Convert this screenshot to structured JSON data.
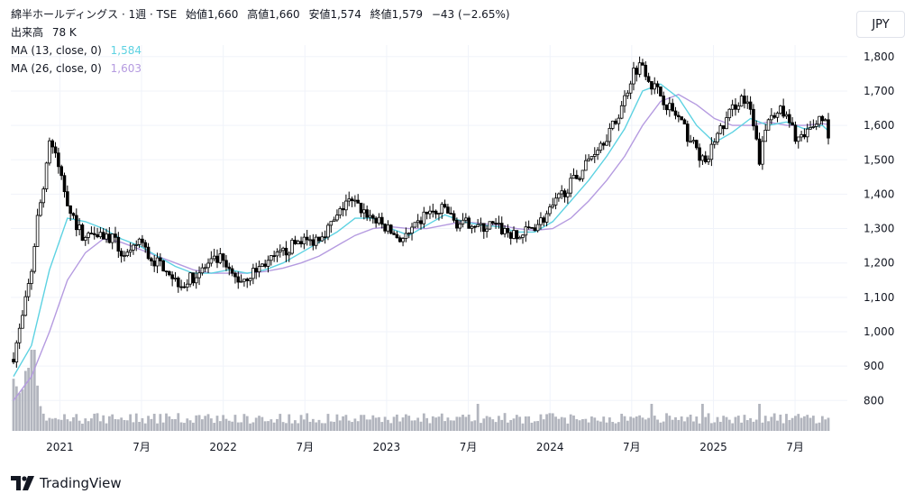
{
  "header": {
    "title": "綿半ホールディングス · 1週 · TSE",
    "open_label": "始値",
    "open": "1,660",
    "high_label": "高値",
    "high": "1,660",
    "low_label": "安値",
    "low": "1,574",
    "close_label": "終値",
    "close": "1,579",
    "change": "−43 (−2.65%)",
    "volume_label": "出来高",
    "volume": "78 K",
    "ma13_label": "MA (13, close, 0)",
    "ma13_value": "1,584",
    "ma26_label": "MA (26, close, 0)",
    "ma26_value": "1,603"
  },
  "currency_button": "JPY",
  "brand": "TradingView",
  "colors": {
    "up": "#ffffff",
    "down": "#000000",
    "ma13": "#5dd2e2",
    "ma26": "#b59be0",
    "volume": "#b2b5be",
    "grid": "#f0f3fa"
  },
  "chart_data": {
    "type": "candlestick",
    "interval": "1 week",
    "y_axis": {
      "ticks": [
        800,
        900,
        1000,
        1100,
        1200,
        1300,
        1400,
        1500,
        1600,
        1700,
        1800
      ],
      "tick_labels": [
        "800",
        "900",
        "1,000",
        "1,100",
        "1,200",
        "1,300",
        "1,400",
        "1,500",
        "1,600",
        "1,700",
        "1,800"
      ]
    },
    "x_axis": {
      "ticks": [
        {
          "label": "2021",
          "date": "2021-01"
        },
        {
          "label": "7月",
          "date": "2021-07"
        },
        {
          "label": "2022",
          "date": "2022-01"
        },
        {
          "label": "7月",
          "date": "2022-07"
        },
        {
          "label": "2023",
          "date": "2023-01"
        },
        {
          "label": "7月",
          "date": "2023-07"
        },
        {
          "label": "2024",
          "date": "2024-01"
        },
        {
          "label": "7月",
          "date": "2024-07"
        },
        {
          "label": "2025",
          "date": "2025-01"
        },
        {
          "label": "7月",
          "date": "2025-07"
        }
      ]
    },
    "close_path": [
      [
        0,
        930
      ],
      [
        3,
        1040
      ],
      [
        6,
        1180
      ],
      [
        8,
        1330
      ],
      [
        10,
        1420
      ],
      [
        12,
        1560
      ],
      [
        15,
        1480
      ],
      [
        18,
        1380
      ],
      [
        21,
        1310
      ],
      [
        24,
        1270
      ],
      [
        27,
        1300
      ],
      [
        30,
        1280
      ],
      [
        33,
        1270
      ],
      [
        36,
        1230
      ],
      [
        39,
        1220
      ],
      [
        42,
        1270
      ],
      [
        45,
        1220
      ],
      [
        48,
        1200
      ],
      [
        51,
        1190
      ],
      [
        54,
        1150
      ],
      [
        57,
        1140
      ],
      [
        60,
        1160
      ],
      [
        63,
        1180
      ],
      [
        66,
        1200
      ],
      [
        69,
        1210
      ],
      [
        72,
        1170
      ],
      [
        75,
        1150
      ],
      [
        78,
        1160
      ],
      [
        81,
        1180
      ],
      [
        84,
        1200
      ],
      [
        87,
        1210
      ],
      [
        90,
        1230
      ],
      [
        93,
        1250
      ],
      [
        96,
        1270
      ],
      [
        99,
        1260
      ],
      [
        102,
        1280
      ],
      [
        105,
        1300
      ],
      [
        108,
        1330
      ],
      [
        111,
        1380
      ],
      [
        114,
        1370
      ],
      [
        117,
        1350
      ],
      [
        120,
        1330
      ],
      [
        123,
        1310
      ],
      [
        126,
        1290
      ],
      [
        129,
        1270
      ],
      [
        132,
        1280
      ],
      [
        135,
        1310
      ],
      [
        138,
        1350
      ],
      [
        141,
        1340
      ],
      [
        144,
        1360
      ],
      [
        147,
        1320
      ],
      [
        150,
        1310
      ],
      [
        153,
        1320
      ],
      [
        156,
        1300
      ],
      [
        159,
        1310
      ],
      [
        162,
        1300
      ],
      [
        165,
        1290
      ],
      [
        168,
        1270
      ],
      [
        171,
        1290
      ],
      [
        174,
        1310
      ],
      [
        177,
        1330
      ],
      [
        180,
        1360
      ],
      [
        183,
        1400
      ],
      [
        186,
        1430
      ],
      [
        189,
        1460
      ],
      [
        192,
        1500
      ],
      [
        195,
        1540
      ],
      [
        198,
        1570
      ],
      [
        201,
        1610
      ],
      [
        204,
        1680
      ],
      [
        207,
        1760
      ],
      [
        210,
        1780
      ],
      [
        213,
        1720
      ],
      [
        216,
        1690
      ],
      [
        219,
        1650
      ],
      [
        222,
        1620
      ],
      [
        225,
        1570
      ],
      [
        228,
        1530
      ],
      [
        231,
        1480
      ],
      [
        234,
        1560
      ],
      [
        237,
        1600
      ],
      [
        240,
        1650
      ],
      [
        243,
        1680
      ],
      [
        246,
        1640
      ],
      [
        249,
        1500
      ],
      [
        252,
        1620
      ],
      [
        255,
        1650
      ],
      [
        258,
        1620
      ],
      [
        261,
        1570
      ],
      [
        264,
        1560
      ],
      [
        267,
        1600
      ],
      [
        270,
        1630
      ],
      [
        272,
        1579
      ]
    ],
    "ma13_path": [
      [
        0,
        870
      ],
      [
        6,
        960
      ],
      [
        12,
        1180
      ],
      [
        18,
        1330
      ],
      [
        24,
        1320
      ],
      [
        30,
        1300
      ],
      [
        36,
        1270
      ],
      [
        42,
        1250
      ],
      [
        48,
        1220
      ],
      [
        54,
        1190
      ],
      [
        60,
        1170
      ],
      [
        66,
        1170
      ],
      [
        72,
        1180
      ],
      [
        78,
        1170
      ],
      [
        84,
        1180
      ],
      [
        90,
        1200
      ],
      [
        96,
        1230
      ],
      [
        102,
        1260
      ],
      [
        108,
        1290
      ],
      [
        114,
        1330
      ],
      [
        120,
        1330
      ],
      [
        126,
        1300
      ],
      [
        132,
        1280
      ],
      [
        138,
        1310
      ],
      [
        144,
        1340
      ],
      [
        150,
        1320
      ],
      [
        156,
        1310
      ],
      [
        162,
        1305
      ],
      [
        168,
        1290
      ],
      [
        174,
        1290
      ],
      [
        180,
        1320
      ],
      [
        186,
        1380
      ],
      [
        192,
        1440
      ],
      [
        198,
        1510
      ],
      [
        204,
        1590
      ],
      [
        210,
        1700
      ],
      [
        216,
        1720
      ],
      [
        222,
        1680
      ],
      [
        228,
        1600
      ],
      [
        234,
        1550
      ],
      [
        240,
        1580
      ],
      [
        246,
        1620
      ],
      [
        252,
        1600
      ],
      [
        258,
        1610
      ],
      [
        264,
        1590
      ],
      [
        270,
        1600
      ],
      [
        272,
        1584
      ]
    ],
    "ma26_path": [
      [
        0,
        800
      ],
      [
        6,
        870
      ],
      [
        12,
        1000
      ],
      [
        18,
        1150
      ],
      [
        24,
        1230
      ],
      [
        30,
        1270
      ],
      [
        36,
        1260
      ],
      [
        42,
        1240
      ],
      [
        48,
        1220
      ],
      [
        54,
        1200
      ],
      [
        60,
        1180
      ],
      [
        66,
        1170
      ],
      [
        72,
        1170
      ],
      [
        78,
        1170
      ],
      [
        84,
        1175
      ],
      [
        90,
        1185
      ],
      [
        96,
        1200
      ],
      [
        102,
        1220
      ],
      [
        108,
        1250
      ],
      [
        114,
        1280
      ],
      [
        120,
        1300
      ],
      [
        126,
        1305
      ],
      [
        132,
        1300
      ],
      [
        138,
        1300
      ],
      [
        144,
        1310
      ],
      [
        150,
        1320
      ],
      [
        156,
        1315
      ],
      [
        162,
        1310
      ],
      [
        168,
        1300
      ],
      [
        174,
        1295
      ],
      [
        180,
        1300
      ],
      [
        186,
        1330
      ],
      [
        192,
        1380
      ],
      [
        198,
        1440
      ],
      [
        204,
        1510
      ],
      [
        210,
        1600
      ],
      [
        216,
        1670
      ],
      [
        222,
        1690
      ],
      [
        228,
        1660
      ],
      [
        234,
        1620
      ],
      [
        240,
        1600
      ],
      [
        246,
        1600
      ],
      [
        252,
        1610
      ],
      [
        258,
        1600
      ],
      [
        264,
        1600
      ],
      [
        270,
        1605
      ],
      [
        272,
        1603
      ]
    ]
  }
}
